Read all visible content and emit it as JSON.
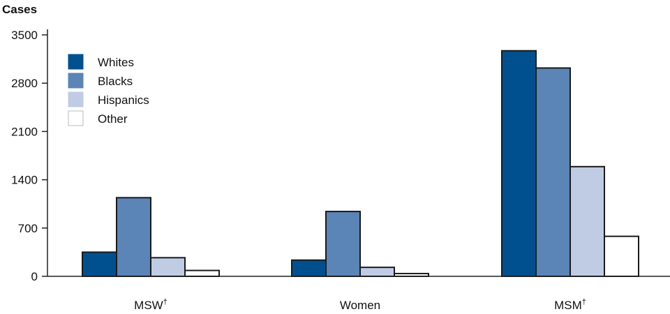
{
  "chart_data": {
    "type": "bar",
    "ylabel": "Cases",
    "ylim": [
      0,
      3500
    ],
    "yticks": [
      0,
      700,
      1400,
      2100,
      2800,
      3500
    ],
    "grid": false,
    "legend_position": "top-left",
    "categories": [
      {
        "label": "MSW",
        "sup": "†"
      },
      {
        "label": "Women",
        "sup": ""
      },
      {
        "label": "MSM",
        "sup": "†"
      }
    ],
    "series": [
      {
        "name": "Whites",
        "color": "#00508f",
        "values": [
          350,
          235,
          3270
        ]
      },
      {
        "name": "Blacks",
        "color": "#5b84b7",
        "values": [
          1140,
          940,
          3020
        ]
      },
      {
        "name": "Hispanics",
        "color": "#bfcce3",
        "values": [
          270,
          130,
          1590
        ]
      },
      {
        "name": "Other",
        "color": "#ffffff",
        "values": [
          85,
          40,
          580
        ]
      }
    ]
  }
}
